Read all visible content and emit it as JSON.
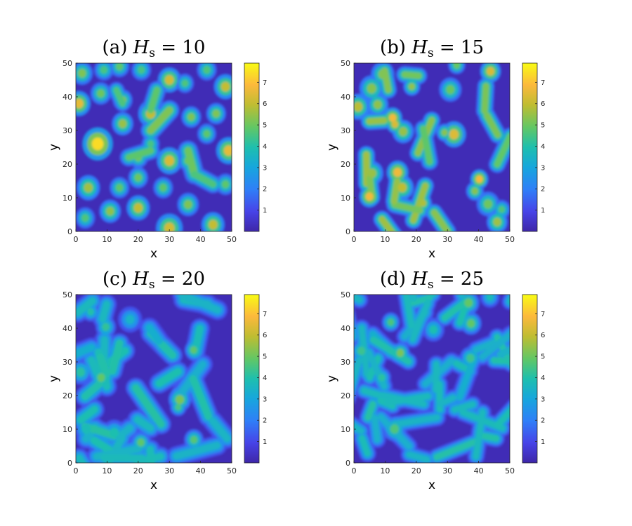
{
  "chart_data": [
    {
      "type": "heatmap",
      "title_prefix": "(a)",
      "title_symbol": "H",
      "title_subscript": "s",
      "title_value": "= 10",
      "xlabel": "x",
      "ylabel": "y",
      "xlim": [
        0,
        50
      ],
      "ylim": [
        0,
        50
      ],
      "xticks": [
        "0",
        "10",
        "20",
        "30",
        "40",
        "50"
      ],
      "yticks": [
        "0",
        "10",
        "20",
        "30",
        "40",
        "50"
      ],
      "colorbar": {
        "range": [
          0,
          7.9
        ],
        "ticks": [
          "1",
          "2",
          "3",
          "4",
          "5",
          "6",
          "7"
        ]
      },
      "colormap": "parula",
      "pattern": "isolated spots"
    },
    {
      "type": "heatmap",
      "title_prefix": "(b)",
      "title_symbol": "H",
      "title_subscript": "s",
      "title_value": "= 15",
      "xlabel": "x",
      "ylabel": "y",
      "xlim": [
        0,
        50
      ],
      "ylim": [
        0,
        50
      ],
      "xticks": [
        "0",
        "10",
        "20",
        "30",
        "40",
        "50"
      ],
      "yticks": [
        "0",
        "10",
        "20",
        "30",
        "40",
        "50"
      ],
      "colorbar": {
        "range": [
          0,
          7.9
        ],
        "ticks": [
          "1",
          "2",
          "3",
          "4",
          "5",
          "6",
          "7"
        ]
      },
      "colormap": "parula",
      "pattern": "spots and short stripes"
    },
    {
      "type": "heatmap",
      "title_prefix": "(c)",
      "title_symbol": "H",
      "title_subscript": "s",
      "title_value": "= 20",
      "xlabel": "x",
      "ylabel": "y",
      "xlim": [
        0,
        50
      ],
      "ylim": [
        0,
        50
      ],
      "xticks": [
        "0",
        "10",
        "20",
        "30",
        "40",
        "50"
      ],
      "yticks": [
        "0",
        "10",
        "20",
        "30",
        "40",
        "50"
      ],
      "colorbar": {
        "range": [
          0,
          7.9
        ],
        "ticks": [
          "1",
          "2",
          "3",
          "4",
          "5",
          "6",
          "7"
        ]
      },
      "colormap": "parula",
      "pattern": "connected labyrinth"
    },
    {
      "type": "heatmap",
      "title_prefix": "(d)",
      "title_symbol": "H",
      "title_subscript": "s",
      "title_value": "= 25",
      "xlabel": "x",
      "ylabel": "y",
      "xlim": [
        0,
        50
      ],
      "ylim": [
        0,
        50
      ],
      "xticks": [
        "0",
        "10",
        "20",
        "30",
        "40",
        "50"
      ],
      "yticks": [
        "0",
        "10",
        "20",
        "30",
        "40",
        "50"
      ],
      "colorbar": {
        "range": [
          0,
          7.9
        ],
        "ticks": [
          "1",
          "2",
          "3",
          "4",
          "5",
          "6",
          "7"
        ]
      },
      "colormap": "parula",
      "pattern": "dense labyrinth"
    }
  ]
}
